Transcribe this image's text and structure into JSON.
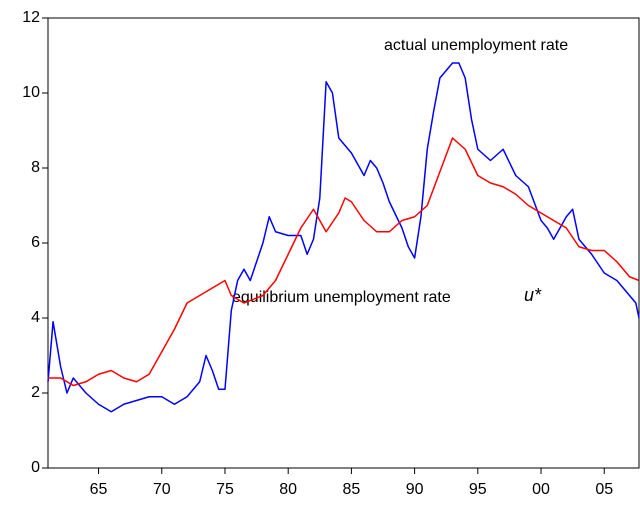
{
  "chart_data": {
    "type": "line",
    "annotations": [
      "actual unemployment rate",
      "equilibrium unemployment rate",
      "u*"
    ],
    "xlim": [
      1961,
      2007.75
    ],
    "xticks": [
      {
        "value": 1965,
        "label": "65"
      },
      {
        "value": 1970,
        "label": "70"
      },
      {
        "value": 1975,
        "label": "75"
      },
      {
        "value": 1980,
        "label": "80"
      },
      {
        "value": 1985,
        "label": "85"
      },
      {
        "value": 1990,
        "label": "90"
      },
      {
        "value": 1995,
        "label": "95"
      },
      {
        "value": 2000,
        "label": "00"
      },
      {
        "value": 2005,
        "label": "05"
      }
    ],
    "ylim": [
      0,
      12
    ],
    "yticks": [
      0,
      2,
      4,
      6,
      8,
      10,
      12
    ],
    "grid": false,
    "series": [
      {
        "color": "#0000ff",
        "x": [
          1961,
          1961.4,
          1962,
          1962.5,
          1963,
          1964,
          1965,
          1966,
          1967,
          1968,
          1969,
          1970,
          1971,
          1972,
          1973,
          1973.5,
          1974,
          1974.5,
          1975,
          1975.5,
          1976,
          1976.5,
          1977,
          1977.5,
          1978,
          1978.5,
          1979,
          1980,
          1981,
          1981.5,
          1982,
          1982.5,
          1983,
          1983.5,
          1984,
          1985,
          1986,
          1986.5,
          1987,
          1987.5,
          1988,
          1989,
          1989.5,
          1990,
          1990.5,
          1991,
          1991.5,
          1992,
          1993,
          1993.5,
          1994,
          1994.5,
          1995,
          1996,
          1997,
          1998,
          1999,
          2000,
          2000.5,
          2001,
          2002,
          2002.5,
          2003,
          2003.5,
          2004,
          2005,
          2006,
          2007,
          2007.5,
          2007.75
        ],
        "values": [
          2.3,
          3.9,
          2.7,
          2.0,
          2.4,
          2.0,
          1.7,
          1.5,
          1.7,
          1.8,
          1.9,
          1.9,
          1.7,
          1.9,
          2.3,
          3.0,
          2.6,
          2.1,
          2.1,
          4.2,
          5.0,
          5.3,
          5.0,
          5.5,
          6.0,
          6.7,
          6.3,
          6.2,
          6.2,
          5.7,
          6.1,
          7.2,
          10.3,
          10.0,
          8.8,
          8.4,
          7.8,
          8.2,
          8.0,
          7.6,
          7.1,
          6.4,
          5.9,
          5.6,
          6.7,
          8.5,
          9.5,
          10.4,
          10.8,
          10.8,
          10.4,
          9.3,
          8.5,
          8.2,
          8.5,
          7.8,
          7.5,
          6.6,
          6.4,
          6.1,
          6.7,
          6.9,
          6.1,
          5.9,
          5.7,
          5.2,
          5.0,
          4.6,
          4.4,
          4.0
        ]
      },
      {
        "color": "#ff0000",
        "x": [
          1961,
          1962,
          1963,
          1964,
          1965,
          1966,
          1967,
          1968,
          1969,
          1970,
          1971,
          1972,
          1973,
          1974,
          1975,
          1975.5,
          1976.5,
          1978,
          1979,
          1980,
          1981,
          1982,
          1983,
          1984,
          1984.5,
          1985,
          1986,
          1987,
          1988,
          1989,
          1990,
          1991,
          1992,
          1993,
          1994,
          1995,
          1996,
          1997,
          1998,
          1999,
          2000,
          2001,
          2002,
          2003,
          2004,
          2005,
          2006,
          2007,
          2007.75
        ],
        "values": [
          2.4,
          2.4,
          2.2,
          2.3,
          2.5,
          2.6,
          2.4,
          2.3,
          2.5,
          3.1,
          3.7,
          4.4,
          4.6,
          4.8,
          5.0,
          4.6,
          4.4,
          4.6,
          5.0,
          5.7,
          6.4,
          6.9,
          6.3,
          6.8,
          7.2,
          7.1,
          6.6,
          6.3,
          6.3,
          6.6,
          6.7,
          7.0,
          7.9,
          8.8,
          8.5,
          7.8,
          7.6,
          7.5,
          7.3,
          7.0,
          6.8,
          6.6,
          6.4,
          5.9,
          5.8,
          5.8,
          5.5,
          5.1,
          5.0
        ]
      }
    ]
  }
}
